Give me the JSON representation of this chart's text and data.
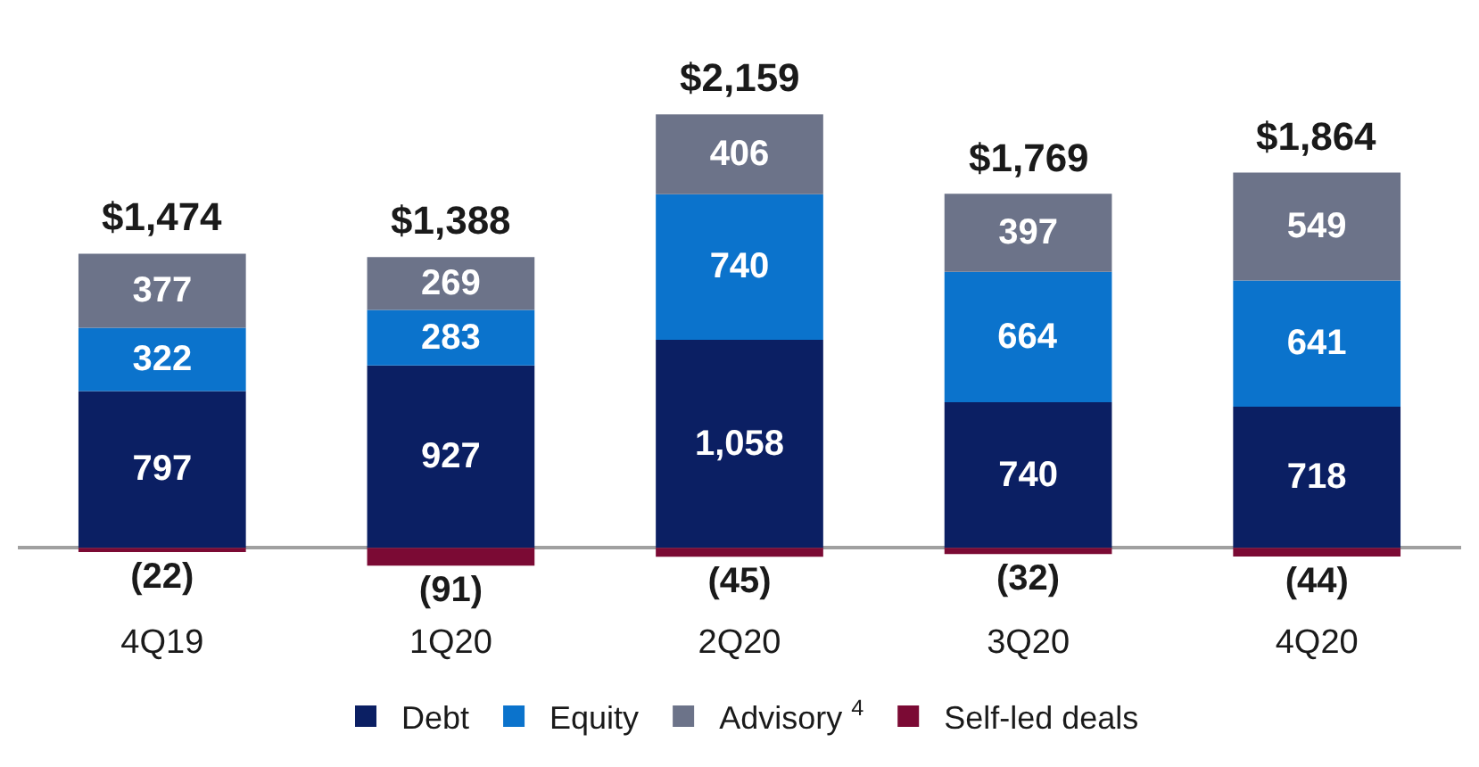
{
  "chart_data": {
    "type": "bar",
    "stacked": true,
    "categories": [
      "4Q19",
      "1Q20",
      "2Q20",
      "3Q20",
      "4Q20"
    ],
    "series": [
      {
        "name": "Debt",
        "color": "#0b1f63",
        "values": [
          797,
          927,
          1058,
          740,
          718
        ],
        "value_labels": [
          "797",
          "927",
          "1,058",
          "740",
          "718"
        ]
      },
      {
        "name": "Equity",
        "color": "#0b73cc",
        "values": [
          322,
          283,
          740,
          664,
          641
        ],
        "value_labels": [
          "322",
          "283",
          "740",
          "664",
          "641"
        ]
      },
      {
        "name": "Advisory $^{4}$",
        "color": "#6c7389",
        "values": [
          377,
          269,
          406,
          397,
          549
        ],
        "value_labels": [
          "377",
          "269",
          "406",
          "397",
          "549"
        ]
      },
      {
        "name": "Self-led deals",
        "color": "#7b0a34",
        "values": [
          -22,
          -91,
          -45,
          -32,
          -44
        ],
        "value_labels": [
          "(22)",
          "(91)",
          "(45)",
          "(32)",
          "(44)"
        ]
      }
    ],
    "totals": [
      "$1,474",
      "$1,388",
      "$2,159",
      "$1,769",
      "$1,864"
    ],
    "tick_labels": "x",
    "legend": "bottom"
  }
}
